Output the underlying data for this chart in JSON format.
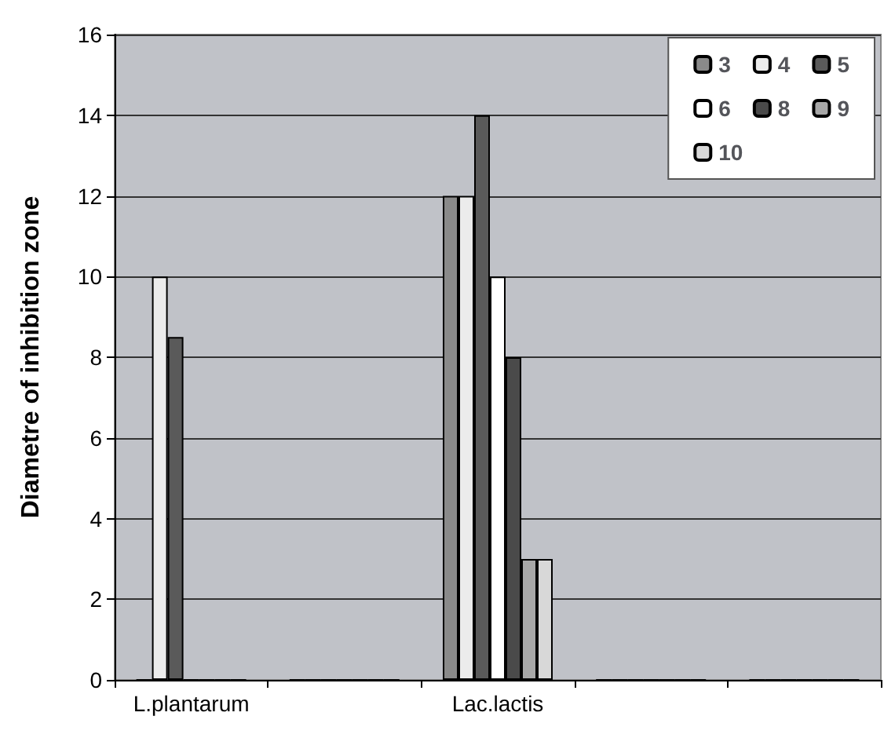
{
  "chart_data": {
    "type": "bar",
    "ylabel": "Diametre of inhibition zone",
    "categories": [
      "L.plantarum",
      null,
      "Lac.lactis",
      null,
      null
    ],
    "series": [
      {
        "name": "3",
        "color": "#8a8a8a",
        "values": [
          0,
          0,
          12,
          0,
          0
        ]
      },
      {
        "name": "4",
        "color": "#ececec",
        "values": [
          10,
          0,
          12,
          0,
          0
        ]
      },
      {
        "name": "5",
        "color": "#5a5a5a",
        "values": [
          8.5,
          0,
          14,
          0,
          0
        ]
      },
      {
        "name": "6",
        "color": "#ffffff",
        "values": [
          0,
          0,
          10,
          0,
          0
        ]
      },
      {
        "name": "8",
        "color": "#4a4a4a",
        "values": [
          0,
          0,
          8,
          0,
          0
        ]
      },
      {
        "name": "9",
        "color": "#a8a8a8",
        "values": [
          0,
          0,
          3,
          0,
          0
        ]
      },
      {
        "name": "10",
        "color": "#d8d8d8",
        "values": [
          0,
          0,
          3,
          0,
          0
        ]
      }
    ],
    "ylim": [
      0,
      16
    ],
    "yticks": [
      0,
      2,
      4,
      6,
      8,
      10,
      12,
      14,
      16
    ],
    "grid": "y",
    "legend": "top right"
  }
}
